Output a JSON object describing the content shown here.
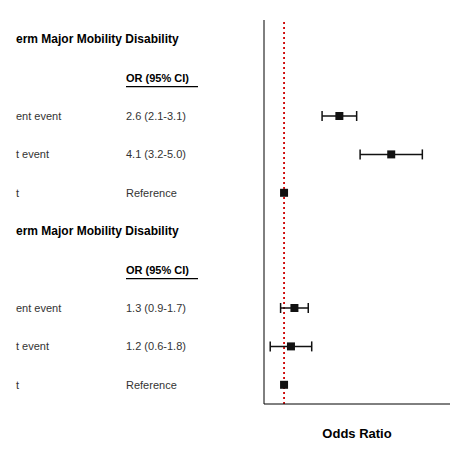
{
  "chart_data": {
    "type": "forest",
    "x_label": "Odds Ratio",
    "xlim": [
      0.42,
      5.8
    ],
    "tick_labels": false,
    "color": "#111111",
    "reference_line": {
      "value": 1.0,
      "color": "#cc0000"
    },
    "sections": [
      {
        "title": "erm Major Mobility Disability",
        "header": "OR (95% CI)",
        "categories": [
          "ent event",
          "t event",
          "t"
        ],
        "values": [
          2.6,
          4.1,
          1.0
        ],
        "ci_low": [
          2.1,
          3.2,
          null
        ],
        "ci_high": [
          3.1,
          5.0,
          null
        ],
        "value_labels": [
          "2.6 (2.1-3.1)",
          "4.1 (3.2-5.0)",
          "Reference"
        ]
      },
      {
        "title": "erm Major Mobility Disability",
        "header": "OR (95% CI)",
        "categories": [
          "ent event",
          "t event",
          "t"
        ],
        "values": [
          1.3,
          1.2,
          1.0
        ],
        "ci_low": [
          0.9,
          0.6,
          null
        ],
        "ci_high": [
          1.7,
          1.8,
          null
        ],
        "value_labels": [
          "1.3 (0.9-1.7)",
          "1.2 (0.6-1.8)",
          "Reference"
        ]
      }
    ]
  }
}
